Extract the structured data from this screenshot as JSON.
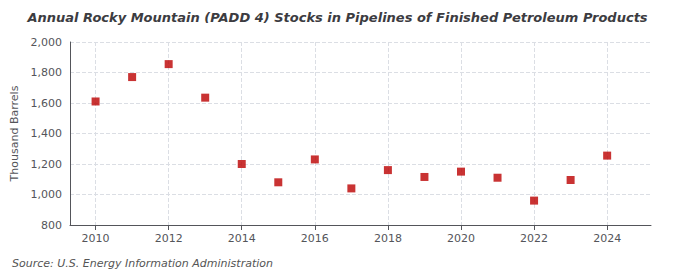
{
  "chart_data": {
    "type": "scatter",
    "title": "Annual Rocky Mountain (PADD 4) Stocks in Pipelines of Finished Petroleum Products",
    "ylabel": "Thousand Barrels",
    "annotations": [
      "Source: U.S. Energy Information Administration"
    ],
    "x": [
      2010,
      2011,
      2012,
      2013,
      2014,
      2015,
      2016,
      2017,
      2018,
      2019,
      2020,
      2021,
      2022,
      2023,
      2024
    ],
    "values": [
      1610,
      1770,
      1855,
      1635,
      1200,
      1080,
      1230,
      1040,
      1160,
      1115,
      1150,
      1110,
      960,
      1095,
      1255
    ],
    "color": "#bb0000",
    "marker": "square",
    "xlim": [
      2009.3,
      2025.2
    ],
    "xticks": [
      2010,
      2012,
      2014,
      2016,
      2018,
      2020,
      2022,
      2024
    ],
    "ylim": [
      800,
      2000
    ],
    "yticks": [
      800,
      {
        "value": 1000,
        "label": "1,000"
      },
      {
        "value": 1200,
        "label": "1,200"
      },
      {
        "value": 1400,
        "label": "1,400"
      },
      {
        "value": 1600,
        "label": "1,600"
      },
      {
        "value": 1800,
        "label": "1,800"
      },
      {
        "value": 2000,
        "label": "2,000"
      }
    ],
    "grid": true
  }
}
